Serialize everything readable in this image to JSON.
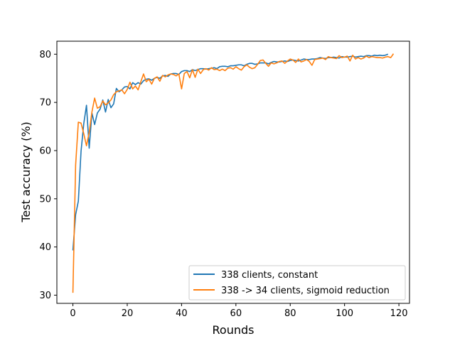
{
  "chart_data": {
    "type": "line",
    "title": "",
    "xlabel": "Rounds",
    "ylabel": "Test accuracy (%)",
    "xlim": [
      -5.9,
      123.9
    ],
    "ylim": [
      28.3,
      82.7
    ],
    "xticks": [
      0,
      20,
      40,
      60,
      80,
      100,
      120
    ],
    "yticks": [
      30,
      40,
      50,
      60,
      70,
      80
    ],
    "grid": false,
    "legend_position": "lower-right",
    "series": [
      {
        "name": "338 clients, constant",
        "color": "#1f77b4",
        "x": [
          0,
          1,
          2,
          3,
          4,
          5,
          6,
          7,
          8,
          9,
          10,
          11,
          12,
          13,
          14,
          15,
          16,
          17,
          18,
          19,
          20,
          21,
          22,
          23,
          24,
          25,
          26,
          27,
          28,
          29,
          30,
          31,
          32,
          33,
          34,
          35,
          36,
          37,
          38,
          39,
          40,
          41,
          42,
          43,
          44,
          45,
          46,
          47,
          48,
          49,
          50,
          51,
          52,
          53,
          54,
          55,
          56,
          57,
          58,
          59,
          60,
          61,
          62,
          63,
          64,
          65,
          66,
          67,
          68,
          69,
          70,
          71,
          72,
          73,
          74,
          75,
          76,
          77,
          78,
          79,
          80,
          81,
          82,
          83,
          84,
          85,
          86,
          87,
          88,
          89,
          90,
          91,
          92,
          93,
          94,
          95,
          96,
          97,
          98,
          99,
          100,
          101,
          102,
          103,
          104,
          105,
          106,
          107,
          108,
          109,
          110,
          111,
          112,
          113,
          114,
          115,
          116
        ],
        "y": [
          39.3,
          46.7,
          49.5,
          59.9,
          65.6,
          69.4,
          60.5,
          67.8,
          65.4,
          67.8,
          68.6,
          70.5,
          68.0,
          70.6,
          68.9,
          69.7,
          72.9,
          72.2,
          72.6,
          73.2,
          73.3,
          72.8,
          74.1,
          73.7,
          74.1,
          73.8,
          74.5,
          74.8,
          74.9,
          74.6,
          75.0,
          75.2,
          75.0,
          75.5,
          75.6,
          75.4,
          75.9,
          76.0,
          76.0,
          75.8,
          76.4,
          76.6,
          76.6,
          76.4,
          76.8,
          76.6,
          76.8,
          77.0,
          77.0,
          76.9,
          77.0,
          77.1,
          77.2,
          77.0,
          77.4,
          77.5,
          77.5,
          77.4,
          77.6,
          77.6,
          77.7,
          77.8,
          77.8,
          77.6,
          77.9,
          78.1,
          78.1,
          77.9,
          78.0,
          78.2,
          78.2,
          78.2,
          78.0,
          78.3,
          78.5,
          78.4,
          78.4,
          78.5,
          78.6,
          78.5,
          78.7,
          78.8,
          78.7,
          78.6,
          78.8,
          79.0,
          78.9,
          78.9,
          79.0,
          79.0,
          79.1,
          79.3,
          79.2,
          79.1,
          79.3,
          79.3,
          79.4,
          79.3,
          79.2,
          79.5,
          79.4,
          79.4,
          79.5,
          79.6,
          79.4,
          79.5,
          79.6,
          79.5,
          79.7,
          79.7,
          79.6,
          79.8,
          79.7,
          79.8,
          79.7,
          79.8,
          80.0
        ]
      },
      {
        "name": "338 -> 34 clients, sigmoid reduction",
        "color": "#ff7f0e",
        "x": [
          0,
          1,
          2,
          3,
          4,
          5,
          6,
          7,
          8,
          9,
          10,
          11,
          12,
          13,
          14,
          15,
          16,
          17,
          18,
          19,
          20,
          21,
          22,
          23,
          24,
          25,
          26,
          27,
          28,
          29,
          30,
          31,
          32,
          33,
          34,
          35,
          36,
          37,
          38,
          39,
          40,
          41,
          42,
          43,
          44,
          45,
          46,
          47,
          48,
          49,
          50,
          51,
          52,
          53,
          54,
          55,
          56,
          57,
          58,
          59,
          60,
          61,
          62,
          63,
          64,
          65,
          66,
          67,
          68,
          69,
          70,
          71,
          72,
          73,
          74,
          75,
          76,
          77,
          78,
          79,
          80,
          81,
          82,
          83,
          84,
          85,
          86,
          87,
          88,
          89,
          90,
          91,
          92,
          93,
          94,
          95,
          96,
          97,
          98,
          99,
          100,
          101,
          102,
          103,
          104,
          105,
          106,
          107,
          108,
          109,
          110,
          111,
          112,
          113,
          114,
          115,
          116,
          117,
          118
        ],
        "y": [
          30.5,
          57.0,
          65.9,
          65.7,
          63.5,
          61.0,
          63.8,
          68.0,
          70.9,
          68.8,
          69.1,
          70.3,
          69.5,
          69.9,
          70.5,
          71.6,
          72.2,
          72.4,
          72.6,
          71.8,
          72.7,
          74.2,
          72.8,
          73.4,
          72.6,
          74.3,
          75.9,
          74.3,
          74.8,
          73.8,
          75.0,
          75.3,
          74.4,
          75.6,
          75.3,
          75.7,
          75.9,
          75.8,
          75.5,
          75.9,
          72.8,
          76.0,
          76.4,
          75.1,
          76.8,
          75.2,
          76.9,
          76.0,
          76.8,
          77.0,
          76.7,
          77.2,
          76.8,
          76.9,
          76.6,
          76.9,
          76.6,
          77.1,
          77.2,
          76.9,
          77.4,
          77.0,
          76.7,
          77.4,
          77.8,
          77.3,
          77.0,
          77.2,
          77.9,
          78.7,
          78.8,
          78.1,
          77.5,
          78.2,
          78.0,
          78.2,
          78.5,
          78.6,
          78.1,
          78.6,
          79.0,
          78.8,
          78.3,
          79.0,
          78.4,
          78.6,
          78.9,
          78.5,
          77.7,
          78.9,
          79.0,
          79.1,
          79.2,
          78.9,
          79.5,
          79.3,
          79.2,
          79.1,
          79.7,
          79.3,
          79.4,
          79.6,
          78.6,
          79.8,
          79.0,
          79.3,
          79.0,
          79.2,
          79.6,
          79.3,
          79.5,
          79.4,
          79.3,
          79.3,
          79.2,
          79.4,
          79.5,
          79.3,
          80.1
        ]
      }
    ]
  }
}
